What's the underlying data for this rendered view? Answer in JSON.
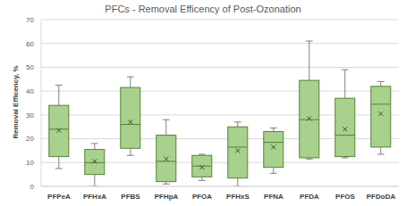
{
  "chart_data": {
    "type": "box",
    "title": "PFCs - Removal Efficency of Post-Ozonation",
    "y_label": "Removal Efficency, %",
    "categories": [
      "PFPeA",
      "PFHxA",
      "PFBS",
      "PFHpA",
      "PFOA",
      "PFHxS",
      "PFNA",
      "PFDA",
      "PFOS",
      "PFDoDA"
    ],
    "min": [
      7.5,
      0,
      13,
      1,
      2.5,
      0,
      5.5,
      11.5,
      12,
      13.5
    ],
    "q1": [
      12.5,
      5,
      16,
      2,
      4,
      3.5,
      8,
      12,
      12.5,
      16.5
    ],
    "median": [
      24,
      10,
      26,
      10.5,
      8.5,
      16.5,
      18.5,
      28,
      21.5,
      34.5
    ],
    "q3": [
      34,
      15.5,
      41.5,
      21.5,
      13,
      25,
      23,
      44.5,
      37,
      42
    ],
    "max": [
      42.5,
      18,
      46,
      28,
      13.5,
      27,
      24.5,
      61,
      49,
      44
    ],
    "mean": [
      23.5,
      10.5,
      27,
      11.5,
      8,
      15,
      16.5,
      28.5,
      24,
      30.5
    ],
    "color": "#a9d18e",
    "ylim": [
      0,
      70
    ],
    "yticks": [
      0,
      10,
      20,
      30,
      40,
      50,
      60,
      70
    ],
    "grid": true
  }
}
